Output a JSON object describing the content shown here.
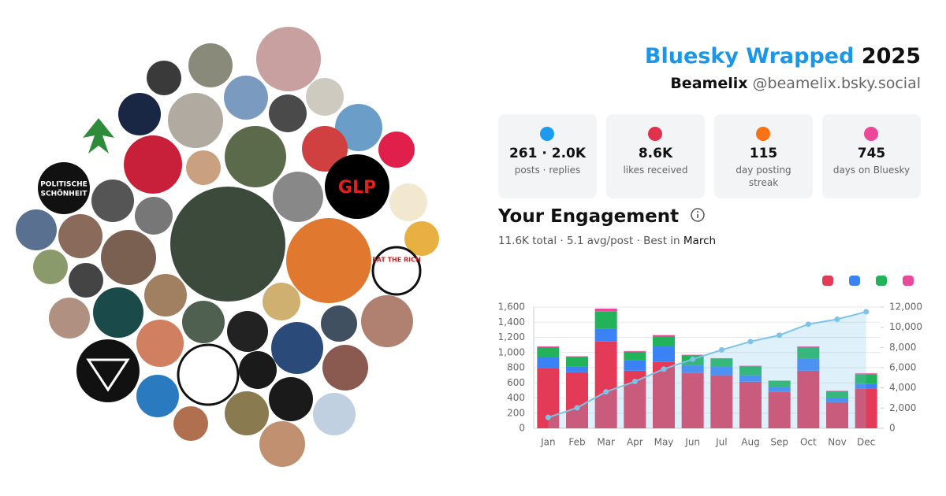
{
  "header": {
    "title": "Bluesky Wrapped",
    "year": "2025",
    "name": "Beamelix",
    "handle": "@beamelix.bsky.social"
  },
  "avatars": {
    "labels": [
      "POLITISCHE",
      "SCHÖNHEIT",
      "GLP",
      "EAT THE RICH"
    ]
  },
  "stats": [
    {
      "value": "261 · 2.0K",
      "label": "posts · replies",
      "color": "#1d9bf0"
    },
    {
      "value": "8.6K",
      "label": "likes received",
      "color": "#e0324d"
    },
    {
      "value": "115",
      "label": "day posting streak",
      "color": "#f97316"
    },
    {
      "value": "745",
      "label": "days on Bluesky",
      "color": "#ec4899"
    }
  ],
  "engagement": {
    "title": "Your Engagement",
    "summary": "11.6K total · 5.1 avg/post · Best in",
    "best": "March"
  },
  "chart_data": {
    "type": "bar",
    "stacked": true,
    "grid": true,
    "categories": [
      "Jan",
      "Feb",
      "Mar",
      "Apr",
      "May",
      "Jun",
      "Jul",
      "Aug",
      "Sep",
      "Oct",
      "Nov",
      "Dec"
    ],
    "series": [
      {
        "color": "#e33a58",
        "values": [
          790,
          740,
          1145,
          760,
          875,
          730,
          700,
          615,
          480,
          760,
          345,
          520
        ]
      },
      {
        "color": "#3b82f6",
        "values": [
          145,
          80,
          165,
          135,
          205,
          100,
          110,
          85,
          70,
          155,
          60,
          70
        ]
      },
      {
        "color": "#22b35a",
        "values": [
          135,
          125,
          230,
          115,
          125,
          135,
          105,
          120,
          75,
          155,
          85,
          125
        ]
      },
      {
        "color": "#ec4899",
        "values": [
          10,
          5,
          40,
          10,
          25,
          5,
          10,
          5,
          5,
          10,
          5,
          10
        ]
      },
      {
        "type": "line",
        "axis": "y2",
        "color": "#7cc3e8",
        "values": [
          1080,
          2030,
          3610,
          4630,
          5865,
          6835,
          7760,
          8585,
          9215,
          10300,
          10795,
          11530
        ]
      }
    ],
    "ylim": [
      0,
      1600
    ],
    "yticks": [
      0,
      200,
      400,
      600,
      800,
      {
        "value": 1000,
        "label": "1,000"
      },
      {
        "value": 1200,
        "label": "1,200"
      },
      {
        "value": 1400,
        "label": "1,400"
      },
      {
        "value": 1600,
        "label": "1,600"
      }
    ],
    "y2lim": [
      0,
      12000
    ],
    "y2ticks": [
      0,
      {
        "value": 2000,
        "label": "2,000"
      },
      {
        "value": 4000,
        "label": "4,000"
      },
      {
        "value": 6000,
        "label": "6,000"
      },
      {
        "value": 8000,
        "label": "8,000"
      },
      {
        "value": 10000,
        "label": "10,000"
      },
      {
        "value": 12000,
        "label": "12,000"
      }
    ]
  }
}
